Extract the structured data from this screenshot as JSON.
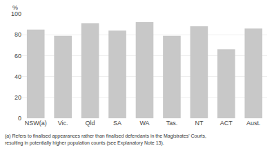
{
  "chart_data": {
    "type": "bar",
    "categories": [
      "NSW(a)",
      "Vic.",
      "Qld",
      "SA",
      "WA",
      "Tas.",
      "NT",
      "ACT",
      "Aust."
    ],
    "values": [
      85,
      79,
      91,
      84,
      92,
      79,
      88,
      66,
      86
    ],
    "color": "#c8c8c8",
    "ylim": [
      0,
      100
    ],
    "yticks": [
      0,
      20,
      40,
      60,
      80,
      100
    ],
    "grid": true,
    "ylabel": "%",
    "annotations": [
      "(a) Refers to finalised appearances rather than finalised defendants in the Magistrates' Courts,",
      "resulting in potentially higher population counts (see Explanatory Note 13)."
    ]
  }
}
